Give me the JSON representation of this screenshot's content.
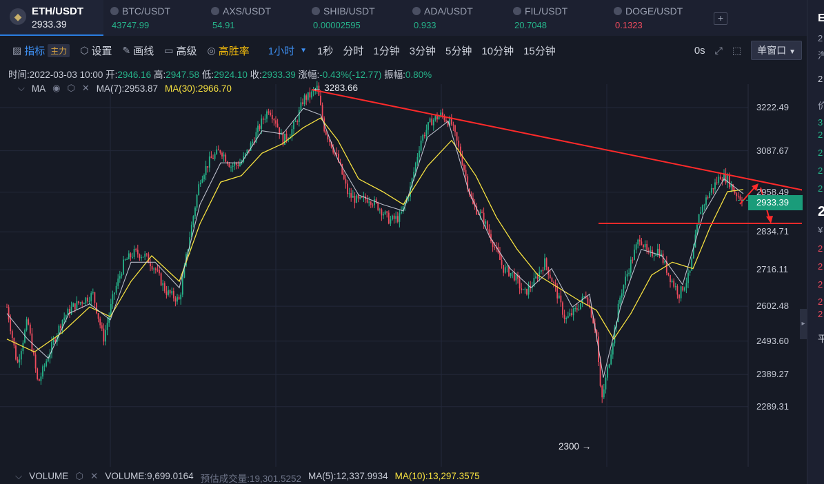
{
  "ticker": {
    "main": {
      "symbol": "ETH/USDT",
      "price": "2933.39"
    },
    "items": [
      {
        "symbol": "BTC/USDT",
        "price": "43747.99",
        "dir": "up"
      },
      {
        "symbol": "AXS/USDT",
        "price": "54.91",
        "dir": "up"
      },
      {
        "symbol": "SHIB/USDT",
        "price": "0.00002595",
        "dir": "up"
      },
      {
        "symbol": "ADA/USDT",
        "price": "0.933",
        "dir": "up"
      },
      {
        "symbol": "FIL/USDT",
        "price": "20.7048",
        "dir": "up"
      },
      {
        "symbol": "DOGE/USDT",
        "price": "0.1323",
        "dir": "down"
      }
    ],
    "add": "+"
  },
  "toolbar": {
    "indicators": "指标",
    "main_tag": "主力",
    "settings": "设置",
    "draw": "画线",
    "advanced": "高级",
    "win_rate": "高胜率",
    "active_interval": "1小时",
    "intervals": [
      "1秒",
      "分时",
      "1分钟",
      "3分钟",
      "5分钟",
      "10分钟",
      "15分钟"
    ],
    "zero": "0s",
    "window": "单窗口"
  },
  "ohlc": {
    "time_label": "时间:",
    "time": "2022-03-03 10:00",
    "open_label": "开:",
    "open": "2946.16",
    "high_label": "高:",
    "high": "2947.58",
    "low_label": "低:",
    "low": "2924.10",
    "close_label": "收:",
    "close": "2933.39",
    "chg_label": "涨幅:",
    "chg": "-0.43%(-12.77)",
    "amp_label": "振幅:",
    "amp": "0.80%"
  },
  "ma": {
    "name": "MA",
    "ma7": "MA(7):2953.87",
    "ma30": "MA(30):2966.70"
  },
  "axis": {
    "ticks": [
      "3222.49",
      "3087.67",
      "2958.49",
      "2834.71",
      "2716.11",
      "2602.48",
      "2493.60",
      "2389.27",
      "2289.31"
    ]
  },
  "current_price": "2933.39",
  "annotations": {
    "high": "← 3283.66",
    "low": "2300 →"
  },
  "volume": {
    "name": "VOLUME",
    "value": "VOLUME:9,699.0164",
    "est": "预估成交量:19,301.5252",
    "ma5": "MA(5):12,337.9934",
    "ma10": "MA(10):13,297.3575"
  },
  "right_panel": {
    "items": [
      "E",
      "2",
      "汽",
      "2",
      "价",
      "3",
      "2",
      "2",
      "2",
      "2",
      "2",
      "¥",
      "2",
      "2",
      "2",
      "2",
      "2",
      "平"
    ]
  },
  "colors": {
    "up": "#26b38a",
    "down": "#ef4b5d",
    "ma30": "#f5e040",
    "ma7": "#d6dbe8",
    "accent": "#2a7de1",
    "annotation": "#ff2a2a"
  },
  "chart_data": {
    "type": "candlestick",
    "interval": "1小时",
    "ylim": [
      2250,
      3300
    ],
    "y_ticks": [
      3222.49,
      3087.67,
      2958.49,
      2834.71,
      2716.11,
      2602.48,
      2493.6,
      2389.27,
      2289.31
    ],
    "marked_high": 3283.66,
    "marked_low": 2300,
    "last_close": 2933.39,
    "path_points": [
      [
        0,
        2600
      ],
      [
        15,
        2420
      ],
      [
        30,
        2560
      ],
      [
        45,
        2360
      ],
      [
        62,
        2460
      ],
      [
        80,
        2560
      ],
      [
        95,
        2600
      ],
      [
        110,
        2620
      ],
      [
        125,
        2640
      ],
      [
        140,
        2500
      ],
      [
        155,
        2640
      ],
      [
        170,
        2740
      ],
      [
        185,
        2770
      ],
      [
        200,
        2760
      ],
      [
        215,
        2720
      ],
      [
        230,
        2650
      ],
      [
        250,
        2620
      ],
      [
        265,
        2820
      ],
      [
        280,
        3000
      ],
      [
        295,
        3060
      ],
      [
        310,
        3090
      ],
      [
        325,
        3040
      ],
      [
        340,
        3050
      ],
      [
        355,
        3110
      ],
      [
        370,
        3180
      ],
      [
        380,
        3220
      ],
      [
        390,
        3180
      ],
      [
        400,
        3120
      ],
      [
        410,
        3140
      ],
      [
        420,
        3180
      ],
      [
        430,
        3250
      ],
      [
        440,
        3260
      ],
      [
        450,
        3283.66
      ],
      [
        460,
        3160
      ],
      [
        470,
        3110
      ],
      [
        480,
        3060
      ],
      [
        495,
        2950
      ],
      [
        510,
        2930
      ],
      [
        525,
        2940
      ],
      [
        540,
        2910
      ],
      [
        555,
        2870
      ],
      [
        570,
        2880
      ],
      [
        585,
        2970
      ],
      [
        600,
        3120
      ],
      [
        615,
        3180
      ],
      [
        630,
        3200
      ],
      [
        645,
        3170
      ],
      [
        660,
        3060
      ],
      [
        675,
        2920
      ],
      [
        690,
        2880
      ],
      [
        705,
        2800
      ],
      [
        720,
        2720
      ],
      [
        735,
        2700
      ],
      [
        750,
        2640
      ],
      [
        765,
        2680
      ],
      [
        780,
        2740
      ],
      [
        795,
        2660
      ],
      [
        810,
        2560
      ],
      [
        825,
        2590
      ],
      [
        840,
        2640
      ],
      [
        855,
        2520
      ],
      [
        862,
        2300
      ],
      [
        875,
        2450
      ],
      [
        890,
        2640
      ],
      [
        905,
        2740
      ],
      [
        918,
        2820
      ],
      [
        930,
        2760
      ],
      [
        945,
        2780
      ],
      [
        960,
        2700
      ],
      [
        975,
        2640
      ],
      [
        990,
        2700
      ],
      [
        1005,
        2900
      ],
      [
        1020,
        2960
      ],
      [
        1035,
        3010
      ],
      [
        1045,
        3000
      ],
      [
        1055,
        2960
      ],
      [
        1068,
        2933.39
      ]
    ],
    "ma7": [
      [
        0,
        2580
      ],
      [
        30,
        2500
      ],
      [
        60,
        2440
      ],
      [
        90,
        2580
      ],
      [
        120,
        2610
      ],
      [
        150,
        2560
      ],
      [
        180,
        2740
      ],
      [
        215,
        2740
      ],
      [
        250,
        2660
      ],
      [
        280,
        2920
      ],
      [
        310,
        3050
      ],
      [
        340,
        3050
      ],
      [
        370,
        3150
      ],
      [
        400,
        3140
      ],
      [
        430,
        3220
      ],
      [
        455,
        3200
      ],
      [
        480,
        3060
      ],
      [
        510,
        2950
      ],
      [
        545,
        2920
      ],
      [
        575,
        2900
      ],
      [
        610,
        3130
      ],
      [
        640,
        3180
      ],
      [
        670,
        2960
      ],
      [
        700,
        2820
      ],
      [
        730,
        2720
      ],
      [
        760,
        2660
      ],
      [
        790,
        2720
      ],
      [
        820,
        2600
      ],
      [
        845,
        2640
      ],
      [
        865,
        2380
      ],
      [
        890,
        2600
      ],
      [
        920,
        2780
      ],
      [
        950,
        2760
      ],
      [
        980,
        2670
      ],
      [
        1010,
        2890
      ],
      [
        1040,
        3000
      ],
      [
        1068,
        2953.87
      ]
    ],
    "ma30": [
      [
        0,
        2500
      ],
      [
        40,
        2460
      ],
      [
        80,
        2520
      ],
      [
        120,
        2600
      ],
      [
        150,
        2570
      ],
      [
        180,
        2680
      ],
      [
        210,
        2760
      ],
      [
        250,
        2680
      ],
      [
        280,
        2860
      ],
      [
        310,
        2990
      ],
      [
        340,
        3010
      ],
      [
        370,
        3080
      ],
      [
        400,
        3110
      ],
      [
        430,
        3160
      ],
      [
        455,
        3190
      ],
      [
        480,
        3120
      ],
      [
        510,
        3000
      ],
      [
        545,
        2960
      ],
      [
        575,
        2920
      ],
      [
        610,
        3040
      ],
      [
        645,
        3120
      ],
      [
        680,
        3010
      ],
      [
        710,
        2880
      ],
      [
        740,
        2780
      ],
      [
        770,
        2700
      ],
      [
        800,
        2660
      ],
      [
        830,
        2620
      ],
      [
        855,
        2590
      ],
      [
        880,
        2500
      ],
      [
        905,
        2580
      ],
      [
        935,
        2700
      ],
      [
        965,
        2740
      ],
      [
        995,
        2720
      ],
      [
        1020,
        2850
      ],
      [
        1045,
        2960
      ],
      [
        1068,
        2966.7
      ]
    ]
  }
}
